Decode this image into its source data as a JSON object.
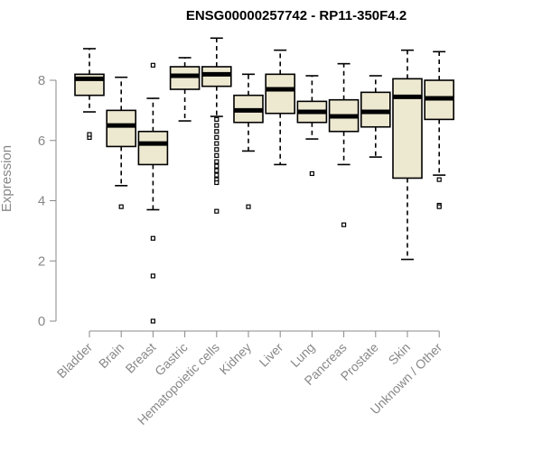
{
  "colors": {
    "box_fill": "#ede8d0",
    "stroke": "#000000",
    "axis": "#888888",
    "text": "#888888",
    "title": "#000000"
  },
  "chart_data": {
    "type": "boxplot",
    "title": "ENSG00000257742 - RP11-350F4.2",
    "xlabel": "",
    "ylabel": "Expression",
    "ylim": [
      0,
      9
    ],
    "yticks": [
      0,
      2,
      4,
      6,
      8
    ],
    "grid": false,
    "categories": [
      "Bladder",
      "Brain",
      "Breast",
      "Gastric",
      "Hematopoietic cells",
      "Kidney",
      "Liver",
      "Lung",
      "Pancreas",
      "Prostate",
      "Skin",
      "Unknown / Other"
    ],
    "boxes": [
      {
        "label": "Bladder",
        "whisker_low": 6.95,
        "q1": 7.5,
        "median": 8.05,
        "q3": 8.2,
        "whisker_high": 9.05,
        "outliers": [
          6.1,
          6.2
        ]
      },
      {
        "label": "Brain",
        "whisker_low": 4.5,
        "q1": 5.8,
        "median": 6.5,
        "q3": 7.0,
        "whisker_high": 8.1,
        "outliers": [
          3.8
        ]
      },
      {
        "label": "Breast",
        "whisker_low": 3.7,
        "q1": 5.2,
        "median": 5.9,
        "q3": 6.3,
        "whisker_high": 7.4,
        "outliers": [
          8.5,
          2.75,
          1.5,
          0.0
        ]
      },
      {
        "label": "Gastric",
        "whisker_low": 6.65,
        "q1": 7.7,
        "median": 8.15,
        "q3": 8.45,
        "whisker_high": 8.75,
        "outliers": []
      },
      {
        "label": "Hematopoietic cells",
        "whisker_low": 6.8,
        "q1": 7.8,
        "median": 8.2,
        "q3": 8.45,
        "whisker_high": 9.4,
        "outliers": [
          6.7,
          6.5,
          6.3,
          6.1,
          5.9,
          5.7,
          5.5,
          5.3,
          5.15,
          5.0,
          4.85,
          4.7,
          4.6,
          3.65
        ]
      },
      {
        "label": "Kidney",
        "whisker_low": 5.65,
        "q1": 6.6,
        "median": 7.0,
        "q3": 7.5,
        "whisker_high": 8.2,
        "outliers": [
          3.8
        ]
      },
      {
        "label": "Liver",
        "whisker_low": 5.2,
        "q1": 6.9,
        "median": 7.7,
        "q3": 8.2,
        "whisker_high": 9.0,
        "outliers": []
      },
      {
        "label": "Lung",
        "whisker_low": 6.05,
        "q1": 6.6,
        "median": 6.95,
        "q3": 7.3,
        "whisker_high": 8.15,
        "outliers": [
          4.9
        ]
      },
      {
        "label": "Pancreas",
        "whisker_low": 5.2,
        "q1": 6.3,
        "median": 6.8,
        "q3": 7.35,
        "whisker_high": 8.55,
        "outliers": [
          3.2
        ]
      },
      {
        "label": "Prostate",
        "whisker_low": 5.45,
        "q1": 6.45,
        "median": 6.95,
        "q3": 7.6,
        "whisker_high": 8.15,
        "outliers": []
      },
      {
        "label": "Skin",
        "whisker_low": 2.05,
        "q1": 4.75,
        "median": 7.45,
        "q3": 8.05,
        "whisker_high": 9.0,
        "outliers": []
      },
      {
        "label": "Unknown / Other",
        "whisker_low": 4.85,
        "q1": 6.7,
        "median": 7.4,
        "q3": 8.0,
        "whisker_high": 8.95,
        "outliers": [
          4.7,
          3.85,
          3.8
        ]
      }
    ]
  }
}
